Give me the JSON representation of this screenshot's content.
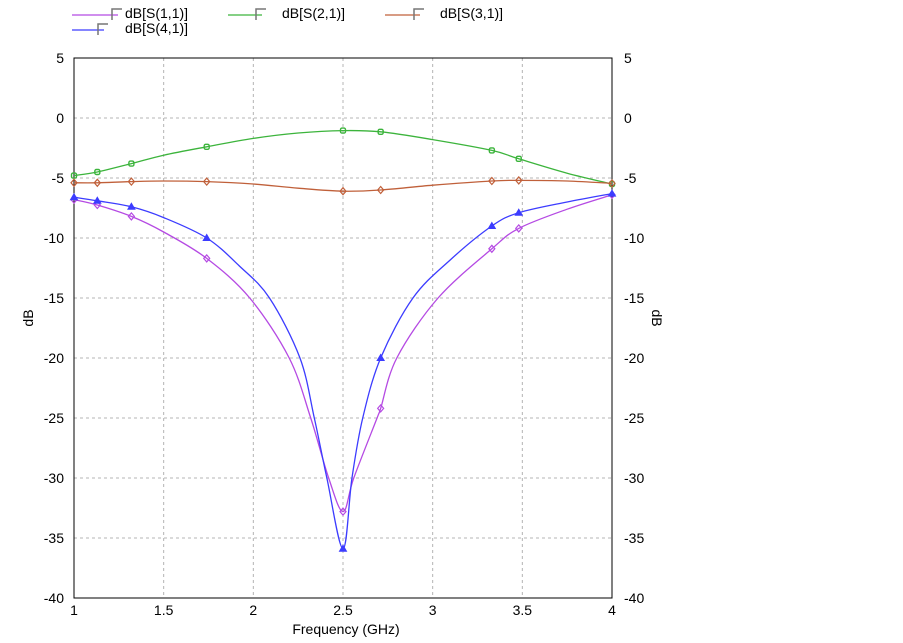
{
  "chart_data": {
    "type": "line",
    "title": "",
    "xlabel": "Frequency (GHz)",
    "ylabel": "dB",
    "ylabel_right": "dB",
    "xlim": [
      1,
      4
    ],
    "ylim": [
      -40,
      5
    ],
    "xticks": [
      1,
      1.5,
      2,
      2.5,
      3,
      3.5,
      4
    ],
    "xtick_labels": [
      "1",
      "1.5",
      "2",
      "2.5",
      "3",
      "3.5",
      "4"
    ],
    "yticks": [
      5,
      0,
      -5,
      -10,
      -15,
      -20,
      -25,
      -30,
      -35,
      -40
    ],
    "ytick_labels": [
      "5",
      "0",
      "-5",
      "-10",
      "-15",
      "-20",
      "-25",
      "-30",
      "-35",
      "-40"
    ],
    "grid": true,
    "legend_position": "top",
    "series": [
      {
        "name": "dB[S(1,1)]",
        "color": "#b54ae3",
        "marker": "diamond",
        "x": [
          1.0,
          1.13,
          1.32,
          1.5,
          1.74,
          1.98,
          2.2,
          2.32,
          2.42,
          2.5,
          2.56,
          2.69,
          2.71,
          2.8,
          3.03,
          3.33,
          3.48,
          3.75,
          4.0
        ],
        "y": [
          -6.8,
          -7.25,
          -8.2,
          -9.5,
          -11.7,
          -15,
          -20,
          -25,
          -30,
          -32.8,
          -30,
          -25,
          -24.2,
          -20,
          -15,
          -10.9,
          -9.2,
          -7.6,
          -6.4
        ],
        "marker_x": [
          1.0,
          1.13,
          1.32,
          1.74,
          2.5,
          2.71,
          3.33,
          3.48,
          4.0
        ]
      },
      {
        "name": "dB[S(2,1)]",
        "color": "#3cb43c",
        "marker": "square",
        "x": [
          1.0,
          1.13,
          1.32,
          1.5,
          1.74,
          2.0,
          2.25,
          2.5,
          2.71,
          3.0,
          3.33,
          3.48,
          3.75,
          4.0
        ],
        "y": [
          -4.8,
          -4.5,
          -3.8,
          -3.1,
          -2.4,
          -1.7,
          -1.25,
          -1.05,
          -1.15,
          -1.8,
          -2.7,
          -3.4,
          -4.6,
          -5.5
        ],
        "marker_x": [
          1.0,
          1.13,
          1.32,
          1.74,
          2.5,
          2.71,
          3.33,
          3.48,
          4.0
        ]
      },
      {
        "name": "dB[S(3,1)]",
        "color": "#c0603a",
        "marker": "diamond",
        "x": [
          1.0,
          1.13,
          1.32,
          1.5,
          1.74,
          2.0,
          2.25,
          2.5,
          2.71,
          3.0,
          3.33,
          3.48,
          3.75,
          4.0
        ],
        "y": [
          -5.4,
          -5.4,
          -5.3,
          -5.25,
          -5.3,
          -5.5,
          -5.85,
          -6.1,
          -6.0,
          -5.6,
          -5.25,
          -5.2,
          -5.25,
          -5.45
        ],
        "marker_x": [
          1.0,
          1.13,
          1.32,
          1.74,
          2.5,
          2.71,
          3.33,
          3.48,
          4.0
        ]
      },
      {
        "name": "dB[S(4,1)]",
        "color": "#3c3cff",
        "marker": "triangle",
        "x": [
          1.0,
          1.13,
          1.32,
          1.5,
          1.74,
          1.92,
          2.09,
          2.26,
          2.34,
          2.41,
          2.5,
          2.55,
          2.61,
          2.71,
          2.89,
          3.1,
          3.33,
          3.48,
          3.75,
          4.0
        ],
        "y": [
          -6.6,
          -6.9,
          -7.4,
          -8.3,
          -10.0,
          -12.3,
          -15,
          -20,
          -25,
          -30,
          -35.9,
          -30,
          -25,
          -20,
          -15,
          -11.8,
          -9.0,
          -7.9,
          -7.0,
          -6.3
        ],
        "marker_x": [
          1.0,
          1.13,
          1.32,
          1.74,
          2.5,
          2.71,
          3.33,
          3.48,
          4.0
        ]
      }
    ]
  }
}
